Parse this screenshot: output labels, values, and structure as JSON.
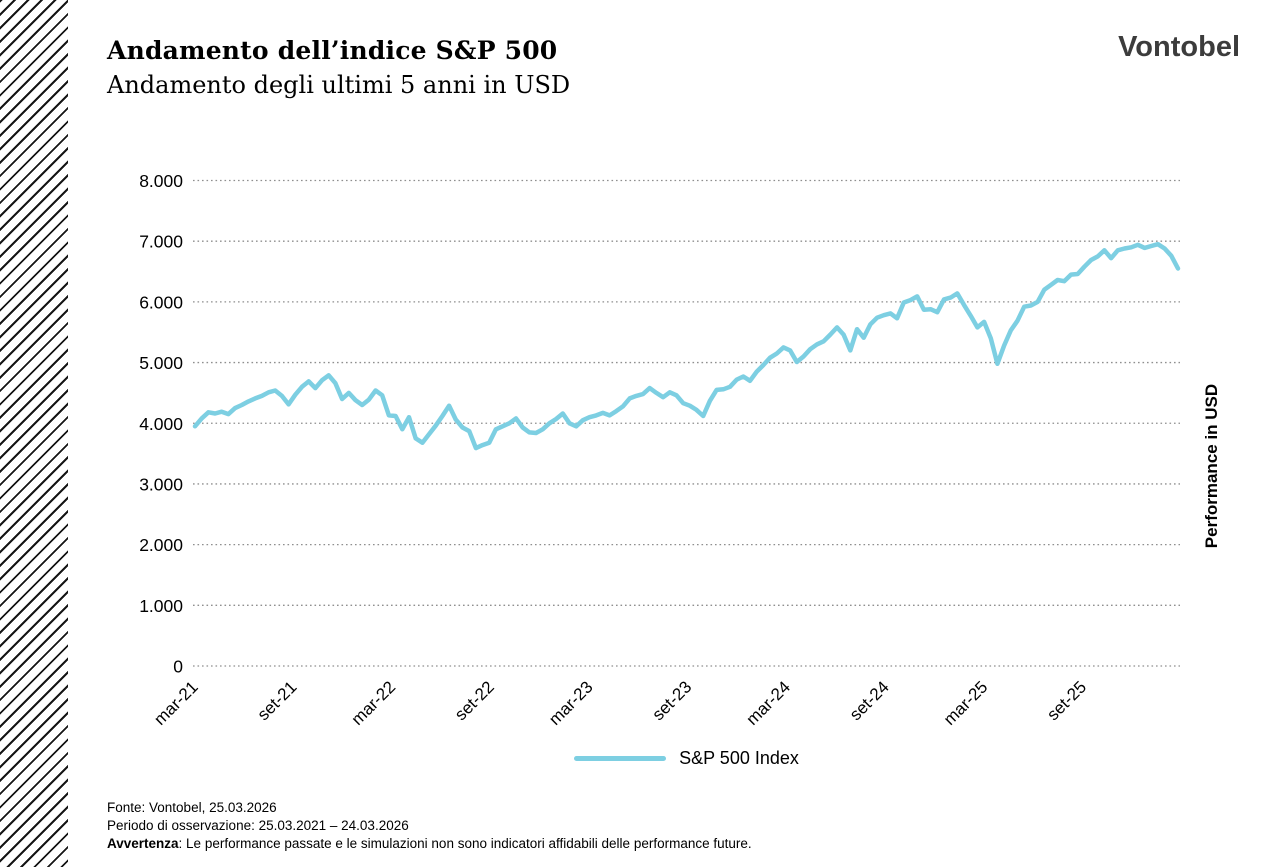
{
  "header": {
    "title": "Andamento dell’indice S&P 500",
    "subtitle": "Andamento degli ultimi 5 anni in USD"
  },
  "logo": {
    "text": "Vontobel"
  },
  "chart_data": {
    "type": "line",
    "title": "Andamento dell’indice S&P 500",
    "subtitle": "Andamento degli ultimi 5 anni in USD",
    "ylabel": "Performance in USD",
    "ylim": [
      0,
      8000
    ],
    "grid": "horizontal-dotted",
    "grid_color": "#8f8f8f",
    "line_color": "#7DCFE2",
    "y_ticks": [
      {
        "value": 0,
        "label": "0"
      },
      {
        "value": 1000,
        "label": "1.000"
      },
      {
        "value": 2000,
        "label": "2.000"
      },
      {
        "value": 3000,
        "label": "3.000"
      },
      {
        "value": 4000,
        "label": "4.000"
      },
      {
        "value": 5000,
        "label": "5.000"
      },
      {
        "value": 6000,
        "label": "6.000"
      },
      {
        "value": 7000,
        "label": "7.000"
      },
      {
        "value": 8000,
        "label": "8.000"
      }
    ],
    "x_total_months": 60,
    "x_ticks": [
      {
        "month": 0,
        "label": "mar-21"
      },
      {
        "month": 6,
        "label": "set-21"
      },
      {
        "month": 12,
        "label": "mar-22"
      },
      {
        "month": 18,
        "label": "set-22"
      },
      {
        "month": 24,
        "label": "mar-23"
      },
      {
        "month": 30,
        "label": "set-23"
      },
      {
        "month": 36,
        "label": "mar-24"
      },
      {
        "month": 42,
        "label": "set-24"
      },
      {
        "month": 48,
        "label": "mar-25"
      },
      {
        "month": 54,
        "label": "set-25"
      }
    ],
    "legend": {
      "position": "bottom-center",
      "entries": [
        {
          "label": "S&P 500 Index",
          "color": "#7DCFE2"
        }
      ]
    },
    "series": [
      {
        "name": "S&P 500 Index",
        "color": "#7DCFE2",
        "values": [
          3950,
          4080,
          4180,
          4160,
          4190,
          4150,
          4250,
          4300,
          4360,
          4410,
          4450,
          4510,
          4540,
          4450,
          4310,
          4470,
          4600,
          4690,
          4580,
          4710,
          4790,
          4660,
          4400,
          4500,
          4380,
          4300,
          4390,
          4540,
          4460,
          4130,
          4120,
          3900,
          4100,
          3750,
          3680,
          3820,
          3960,
          4120,
          4290,
          4060,
          3930,
          3870,
          3590,
          3640,
          3680,
          3900,
          3950,
          4000,
          4080,
          3930,
          3850,
          3840,
          3900,
          4000,
          4070,
          4160,
          4000,
          3950,
          4050,
          4100,
          4130,
          4170,
          4130,
          4200,
          4280,
          4410,
          4450,
          4480,
          4580,
          4500,
          4430,
          4510,
          4460,
          4330,
          4290,
          4220,
          4120,
          4370,
          4550,
          4560,
          4600,
          4720,
          4770,
          4700,
          4850,
          4960,
          5080,
          5150,
          5250,
          5200,
          5010,
          5100,
          5220,
          5300,
          5350,
          5460,
          5580,
          5460,
          5200,
          5550,
          5410,
          5630,
          5740,
          5780,
          5810,
          5730,
          5990,
          6030,
          6090,
          5870,
          5880,
          5830,
          6040,
          6070,
          6140,
          5950,
          5770,
          5580,
          5670,
          5400,
          4980,
          5280,
          5530,
          5690,
          5920,
          5940,
          6000,
          6200,
          6280,
          6360,
          6340,
          6450,
          6460,
          6580,
          6690,
          6750,
          6850,
          6720,
          6850,
          6880,
          6900,
          6940,
          6890,
          6920,
          6950,
          6880,
          6760,
          6550
        ]
      }
    ]
  },
  "footer": {
    "source": "Fonte: Vontobel, 25.03.2026",
    "period": "Periodo di osservazione: 25.03.2021 – 24.03.2026",
    "disclaimer_label": "Avvertenza",
    "disclaimer_text": ": Le performance passate e le simulazioni non sono indicatori affidabili delle performance future."
  }
}
